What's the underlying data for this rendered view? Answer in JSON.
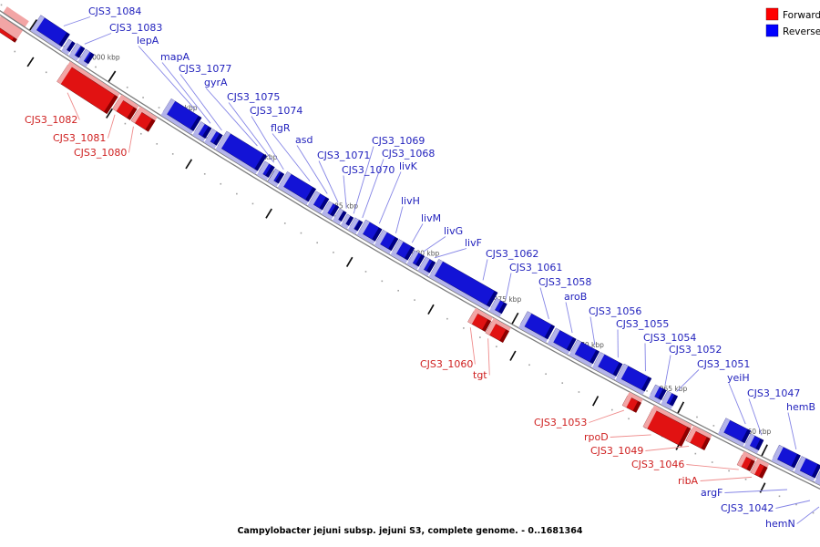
{
  "caption": "Campylobacter jejuni subsp. jejuni S3, complete genome. - 0..1681364",
  "legend": {
    "items": [
      {
        "label": "Forward",
        "color": "#ff0000"
      },
      {
        "label": "Reverse",
        "color": "#0000ff"
      }
    ]
  },
  "chart_data": {
    "type": "genome-track",
    "organism": "Campylobacter jejuni subsp. jejuni S3, complete genome.",
    "genome_range_bp": "0..1681364",
    "orientation": "diagonal-descending-arc",
    "scale": {
      "tick_unit": "kbp",
      "major_tick_interval_kbp": 5,
      "minor_tick_interval_kbp": 1,
      "labeled_ticks_kbp": [
        1000,
        995,
        990,
        985,
        980,
        975,
        970,
        965,
        960
      ],
      "visible_range_kbp": [
        1007,
        955
      ]
    },
    "strand_colors": {
      "forward_main": "#e11212",
      "forward_bevel": "#f2a5a5",
      "forward_cap": "#8e0000",
      "forward_text": "#cf2020",
      "forward_leader": "#ef8c8c",
      "reverse_main": "#1313d6",
      "reverse_bevel": "#b3b3ea",
      "reverse_cap": "#000082",
      "reverse_text": "#2222bd",
      "reverse_leader": "#8585e6",
      "backbone": "#7d7d7d",
      "tick_dash": "#111111",
      "tick_dot": "#a0a0a0",
      "tick_text": "#555555"
    },
    "genes": [
      {
        "name": "",
        "strand": "forward",
        "kb": [
          1006.7,
          1005.3
        ],
        "h": 18,
        "straddle": true
      },
      {
        "name": "CJS3_1084",
        "strand": "reverse",
        "kb": [
          1004.95,
          1003.1
        ],
        "h": 16,
        "label": [
          97,
          6
        ]
      },
      {
        "name": "",
        "strand": "reverse",
        "kb": [
          1003.0,
          1002.6
        ],
        "h": 11
      },
      {
        "name": "CJS3_1083",
        "strand": "reverse",
        "kb": [
          1002.52,
          1002.02
        ],
        "h": 12,
        "label": [
          120,
          24
        ]
      },
      {
        "name": "",
        "strand": "reverse",
        "kb": [
          1001.95,
          1001.42
        ],
        "h": 12
      },
      {
        "name": "CJS3_1082",
        "strand": "forward",
        "kb": [
          1002.3,
          999.15
        ],
        "h": 22,
        "label": [
          27,
          125
        ]
      },
      {
        "name": "CJS3_1081",
        "strand": "forward",
        "kb": [
          999.05,
          997.95
        ],
        "h": 14,
        "label": [
          58,
          145
        ]
      },
      {
        "name": "CJS3_1080",
        "strand": "forward",
        "kb": [
          997.88,
          996.8
        ],
        "h": 14,
        "label": [
          81,
          161
        ]
      },
      {
        "name": "lepA",
        "strand": "reverse",
        "kb": [
          996.7,
          994.8
        ],
        "h": 17,
        "label": [
          150,
          38
        ]
      },
      {
        "name": "mapA",
        "strand": "reverse",
        "kb": [
          994.72,
          994.05
        ],
        "h": 13,
        "label": [
          176,
          56
        ]
      },
      {
        "name": "CJS3_1077",
        "strand": "reverse",
        "kb": [
          993.98,
          993.35
        ],
        "h": 13,
        "label": [
          196,
          69
        ]
      },
      {
        "name": "gyrA",
        "strand": "reverse",
        "kb": [
          993.28,
          990.78
        ],
        "h": 19,
        "label": [
          224,
          84
        ]
      },
      {
        "name": "CJS3_1075",
        "strand": "reverse",
        "kb": [
          990.7,
          990.1
        ],
        "h": 13,
        "label": [
          249,
          100
        ]
      },
      {
        "name": "CJS3_1074",
        "strand": "reverse",
        "kb": [
          990.02,
          989.48
        ],
        "h": 12,
        "label": [
          274,
          115
        ]
      },
      {
        "name": "flgR",
        "strand": "reverse",
        "kb": [
          989.4,
          987.62
        ],
        "h": 16,
        "label": [
          297,
          134
        ]
      },
      {
        "name": "asd",
        "strand": "reverse",
        "kb": [
          987.55,
          986.75
        ],
        "h": 14,
        "label": [
          324,
          147
        ]
      },
      {
        "name": "CJS3_1071",
        "strand": "reverse",
        "kb": [
          986.68,
          986.08
        ],
        "h": 12,
        "label": [
          348,
          164
        ]
      },
      {
        "name": "CJS3_1070",
        "strand": "reverse",
        "kb": [
          986.0,
          985.58
        ],
        "h": 11,
        "label": [
          375,
          180
        ]
      },
      {
        "name": "CJS3_1069",
        "strand": "reverse",
        "kb": [
          985.5,
          985.12
        ],
        "h": 10,
        "label": [
          408,
          148
        ]
      },
      {
        "name": "CJS3_1068",
        "strand": "reverse",
        "kb": [
          985.05,
          984.58
        ],
        "h": 11,
        "label": [
          419,
          162
        ]
      },
      {
        "name": "livK",
        "strand": "reverse",
        "kb": [
          984.5,
          983.5
        ],
        "h": 15,
        "label": [
          438,
          176
        ]
      },
      {
        "name": "livH",
        "strand": "reverse",
        "kb": [
          983.43,
          982.5
        ],
        "h": 15,
        "label": [
          440,
          214
        ]
      },
      {
        "name": "livM",
        "strand": "reverse",
        "kb": [
          982.43,
          981.5
        ],
        "h": 15,
        "label": [
          462,
          233
        ]
      },
      {
        "name": "livG",
        "strand": "reverse",
        "kb": [
          981.43,
          980.82
        ],
        "h": 13,
        "label": [
          487,
          247
        ]
      },
      {
        "name": "livF",
        "strand": "reverse",
        "kb": [
          980.75,
          980.15
        ],
        "h": 13,
        "label": [
          510,
          260
        ]
      },
      {
        "name": "CJS3_1062",
        "strand": "reverse",
        "kb": [
          980.08,
          976.48
        ],
        "h": 18,
        "label": [
          533,
          272
        ]
      },
      {
        "name": "CJS3_1061",
        "strand": "reverse",
        "kb": [
          976.4,
          975.75
        ],
        "h": 12,
        "label": [
          559,
          287
        ]
      },
      {
        "name": "CJS3_1060",
        "strand": "forward",
        "kb": [
          977.1,
          976.05
        ],
        "h": 13,
        "label": [
          461,
          393
        ]
      },
      {
        "name": "tgt",
        "strand": "forward",
        "kb": [
          976.0,
          974.95
        ],
        "h": 14,
        "label": [
          519,
          405
        ]
      },
      {
        "name": "CJS3_1058",
        "strand": "reverse",
        "kb": [
          974.6,
          972.95
        ],
        "h": 16,
        "label": [
          591,
          303
        ]
      },
      {
        "name": "aroB",
        "strand": "reverse",
        "kb": [
          972.85,
          971.62
        ],
        "h": 15,
        "label": [
          619,
          319
        ]
      },
      {
        "name": "CJS3_1056",
        "strand": "reverse",
        "kb": [
          971.55,
          970.22
        ],
        "h": 15,
        "label": [
          646,
          335
        ]
      },
      {
        "name": "CJS3_1055",
        "strand": "reverse",
        "kb": [
          970.15,
          968.82
        ],
        "h": 15,
        "label": [
          676,
          349
        ]
      },
      {
        "name": "CJS3_1054",
        "strand": "reverse",
        "kb": [
          968.75,
          967.1
        ],
        "h": 16,
        "label": [
          706,
          364
        ]
      },
      {
        "name": "CJS3_1052",
        "strand": "reverse",
        "kb": [
          966.75,
          966.1
        ],
        "h": 12,
        "label": [
          734,
          377
        ]
      },
      {
        "name": "CJS3_1051",
        "strand": "reverse",
        "kb": [
          966.02,
          965.42
        ],
        "h": 12,
        "label": [
          765,
          393
        ]
      },
      {
        "name": "CJS3_1053",
        "strand": "forward",
        "kb": [
          967.8,
          966.98
        ],
        "h": 12,
        "label": [
          586,
          457
        ]
      },
      {
        "name": "rpoD",
        "strand": "forward",
        "kb": [
          966.3,
          964.02
        ],
        "h": 22,
        "label": [
          641,
          473
        ]
      },
      {
        "name": "CJS3_1049",
        "strand": "forward",
        "kb": [
          963.95,
          962.85
        ],
        "h": 14,
        "label": [
          648,
          488
        ]
      },
      {
        "name": "yeiH",
        "strand": "reverse",
        "kb": [
          962.6,
          961.12
        ],
        "h": 15,
        "label": [
          798,
          408
        ]
      },
      {
        "name": "CJS3_1047",
        "strand": "reverse",
        "kb": [
          961.05,
          960.28
        ],
        "h": 12,
        "label": [
          820,
          425
        ]
      },
      {
        "name": "CJS3_1046",
        "strand": "forward",
        "kb": [
          960.95,
          960.2
        ],
        "h": 12,
        "label": [
          693,
          503
        ]
      },
      {
        "name": "ribA",
        "strand": "forward",
        "kb": [
          960.14,
          959.45
        ],
        "h": 13,
        "label": [
          744,
          521
        ]
      },
      {
        "name": "hemB",
        "strand": "reverse",
        "kb": [
          959.42,
          958.16
        ],
        "h": 15,
        "label": [
          863,
          440
        ]
      },
      {
        "name": "",
        "strand": "reverse",
        "kb": [
          958.08,
          956.94
        ],
        "h": 15
      },
      {
        "name": "",
        "strand": "reverse",
        "kb": [
          956.86,
          956.0
        ],
        "h": 15
      },
      {
        "name": "argF",
        "strand": "reverse",
        "off_screen": true,
        "label": [
          769,
          534
        ],
        "to": [
          864,
          537
        ]
      },
      {
        "name": "CJS3_1042",
        "strand": "reverse",
        "off_screen": true,
        "label": [
          791,
          551
        ],
        "to": [
          889,
          549
        ]
      },
      {
        "name": "hemN",
        "strand": "reverse",
        "off_screen": true,
        "label": [
          840,
          568
        ],
        "to": [
          899,
          556
        ]
      }
    ]
  }
}
